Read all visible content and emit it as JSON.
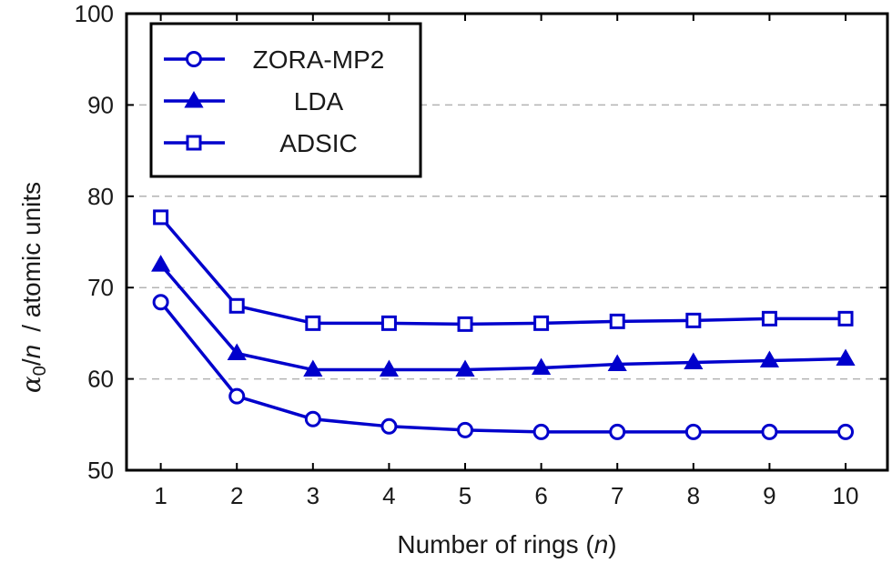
{
  "chart_data": {
    "type": "line",
    "x": [
      1,
      2,
      3,
      4,
      5,
      6,
      7,
      8,
      9,
      10
    ],
    "xlabel": "Number of rings (n)",
    "ylabel": "α0/n / atomic units",
    "ylabel_parts": {
      "symbol": "α",
      "sub": "0",
      "over": "/",
      "var": "n",
      "units": "/ atomic units"
    },
    "xlabel_parts": {
      "text": "Number of rings (",
      "var": "n",
      "close": ")"
    },
    "xlim": [
      0.55,
      10.55
    ],
    "ylim": [
      50,
      100
    ],
    "yticks": [
      50,
      60,
      70,
      80,
      90,
      100
    ],
    "xticks": [
      1,
      2,
      3,
      4,
      5,
      6,
      7,
      8,
      9,
      10
    ],
    "grid": "horizontal-dashed",
    "legend_position": "top-left",
    "line_color": "#0000cc",
    "series": [
      {
        "name": "ZORA-MP2",
        "marker": "circle",
        "values": [
          68.4,
          58.1,
          55.6,
          54.8,
          54.4,
          54.2,
          54.2,
          54.2,
          54.2,
          54.2
        ]
      },
      {
        "name": "LDA",
        "marker": "triangle",
        "values": [
          72.5,
          62.8,
          61.0,
          61.0,
          61.0,
          61.2,
          61.6,
          61.8,
          62.0,
          62.2
        ]
      },
      {
        "name": "ADSIC",
        "marker": "square",
        "values": [
          77.7,
          68.0,
          66.1,
          66.1,
          66.0,
          66.1,
          66.3,
          66.4,
          66.6,
          66.6
        ]
      }
    ]
  }
}
